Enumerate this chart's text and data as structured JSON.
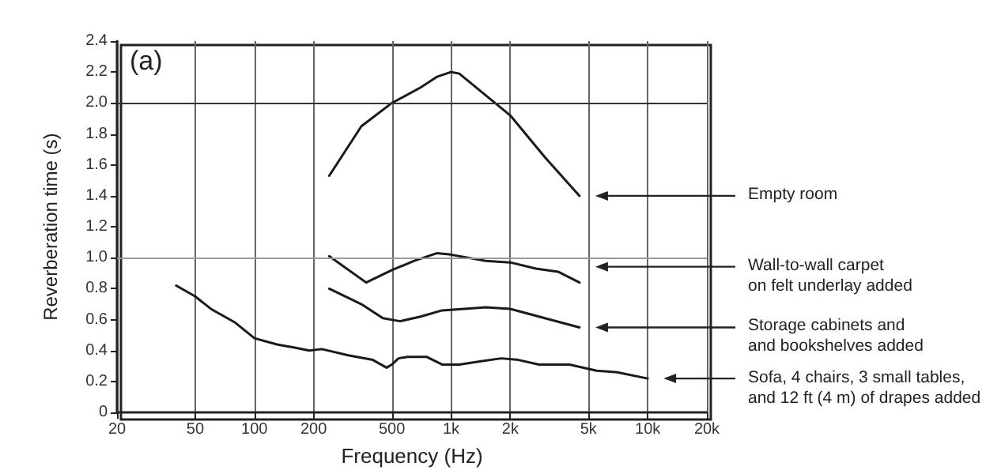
{
  "chart_data": {
    "type": "line",
    "xlabel": "Frequency (Hz)",
    "ylabel": "Reverberation time (s)",
    "log": "x",
    "grid": "x",
    "marker": "none",
    "line_style": "solid",
    "xlim": [
      20,
      20000
    ],
    "xticks": [
      20,
      50,
      100,
      200,
      500,
      {
        "value": 1000,
        "label": "1k"
      },
      {
        "value": 2000,
        "label": "2k"
      },
      {
        "value": 5000,
        "label": "5k"
      },
      {
        "value": 10000,
        "label": "10k"
      },
      {
        "value": 20000,
        "label": "20k"
      }
    ],
    "ylim": [
      0,
      2.4
    ],
    "yticks": [
      0,
      0.2,
      0.4,
      0.6,
      0.8,
      {
        "value": 1,
        "label": "1.0"
      },
      1.2,
      1.4,
      1.6,
      1.8,
      {
        "value": 2,
        "label": "2.0"
      },
      2.2,
      2.4
    ],
    "ref_lines": [
      {
        "axis": "y",
        "value": 1.0,
        "color": "#999999"
      },
      {
        "axis": "y",
        "value": 2.0,
        "color": "#333333"
      }
    ],
    "series": [
      {
        "color": "#1a1a1a",
        "x": [
          240,
          350,
          500,
          700,
          850,
          1000,
          1100,
          2000,
          3000,
          4500
        ],
        "values": [
          1.53,
          1.85,
          2.0,
          2.1,
          2.17,
          2.2,
          2.19,
          1.92,
          1.65,
          1.4
        ]
      },
      {
        "color": "#1a1a1a",
        "x": [
          240,
          370,
          500,
          650,
          850,
          1000,
          1500,
          2000,
          2700,
          3500,
          4500
        ],
        "values": [
          1.01,
          0.84,
          0.92,
          0.98,
          1.03,
          1.02,
          0.98,
          0.97,
          0.93,
          0.91,
          0.84
        ]
      },
      {
        "color": "#1a1a1a",
        "x": [
          240,
          350,
          450,
          550,
          700,
          900,
          1500,
          2000,
          3000,
          4500
        ],
        "values": [
          0.8,
          0.7,
          0.61,
          0.59,
          0.62,
          0.66,
          0.68,
          0.67,
          0.61,
          0.55
        ]
      },
      {
        "color": "#1a1a1a",
        "x": [
          40,
          50,
          60,
          80,
          100,
          130,
          160,
          190,
          220,
          300,
          400,
          470,
          500,
          540,
          600,
          750,
          900,
          1100,
          1400,
          1800,
          2200,
          2800,
          4000,
          5500,
          7000,
          10000
        ],
        "values": [
          0.82,
          0.75,
          0.67,
          0.58,
          0.48,
          0.44,
          0.42,
          0.4,
          0.41,
          0.37,
          0.34,
          0.29,
          0.31,
          0.35,
          0.36,
          0.36,
          0.31,
          0.31,
          0.33,
          0.35,
          0.34,
          0.31,
          0.31,
          0.27,
          0.26,
          0.22
        ]
      }
    ],
    "annotations": [
      "(a)",
      "Empty room",
      "Wall-to-wall carpet\non felt underlay added",
      "Storage cabinets and\nand bookshelves added",
      "Sofa, 4 chairs, 3 small tables,\nand 12 ft (4 m) of drapes added"
    ]
  }
}
